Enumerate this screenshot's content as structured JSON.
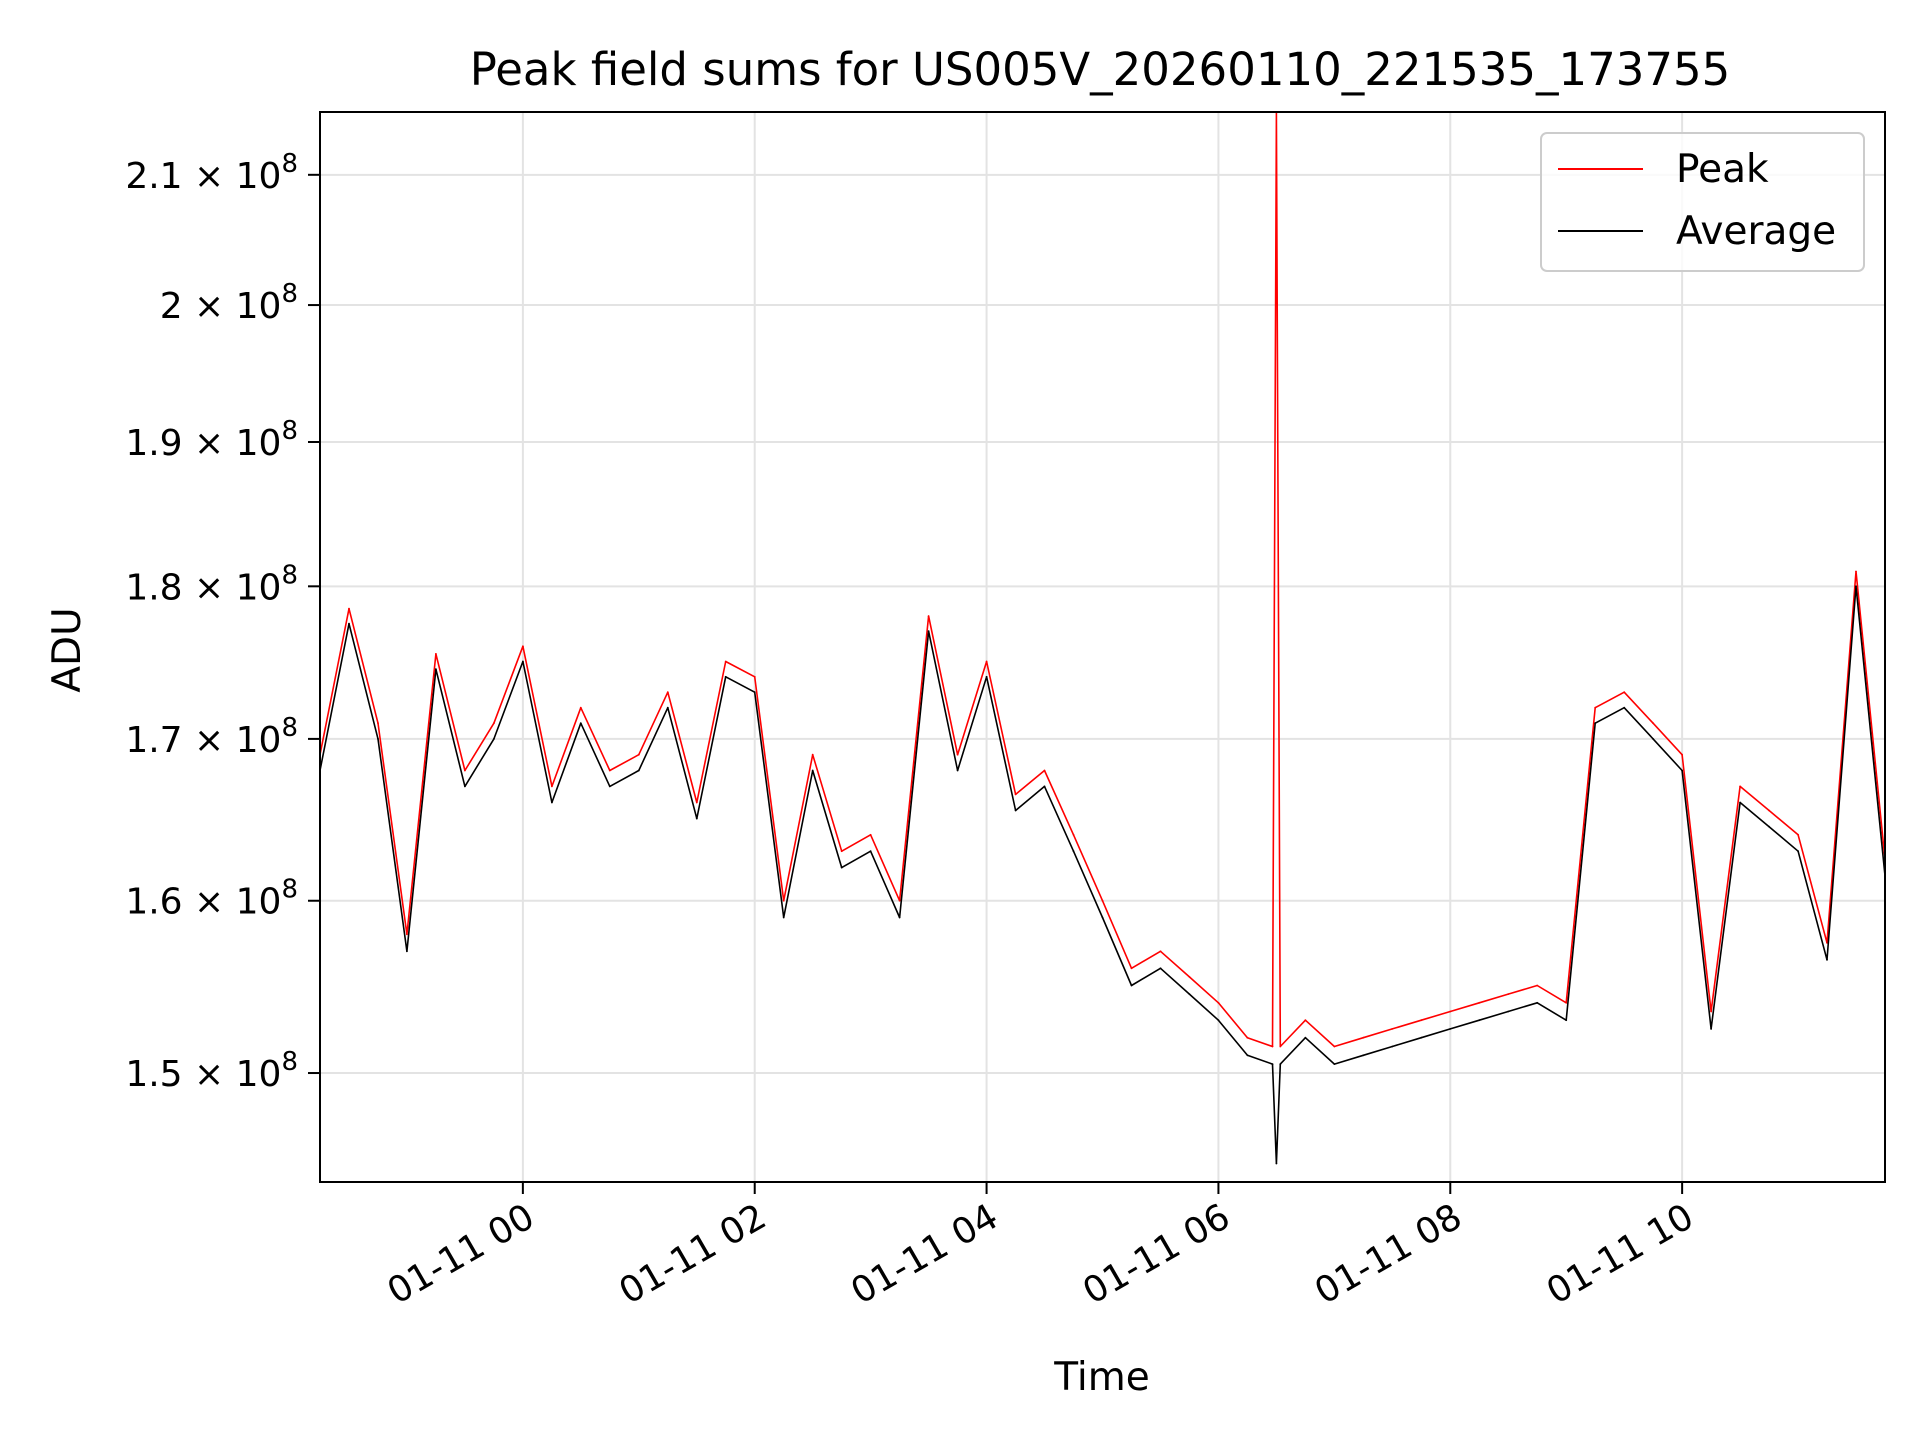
{
  "chart_data": {
    "type": "line",
    "title": "Peak field sums for US005V_20260110_221535_173755",
    "xlabel": "Time",
    "ylabel": "ADU",
    "y_scale": "log",
    "x_range": [
      "2026-01-10 22:15",
      "2026-01-11 11:45"
    ],
    "ylim": [
      144000000,
      215000000
    ],
    "grid": true,
    "legend_position": "upper right",
    "x_ticks": [
      {
        "t": "2026-01-11 00:00",
        "label": "01-11 00"
      },
      {
        "t": "2026-01-11 02:00",
        "label": "01-11 02"
      },
      {
        "t": "2026-01-11 04:00",
        "label": "01-11 04"
      },
      {
        "t": "2026-01-11 06:00",
        "label": "01-11 06"
      },
      {
        "t": "2026-01-11 08:00",
        "label": "01-11 08"
      },
      {
        "t": "2026-01-11 10:00",
        "label": "01-11 10"
      }
    ],
    "y_ticks": [
      {
        "value": 150000000,
        "mantissa": "1.5",
        "exp": "8"
      },
      {
        "value": 160000000,
        "mantissa": "1.6",
        "exp": "8"
      },
      {
        "value": 170000000,
        "mantissa": "1.7",
        "exp": "8"
      },
      {
        "value": 180000000,
        "mantissa": "1.8",
        "exp": "8"
      },
      {
        "value": 190000000,
        "mantissa": "1.9",
        "exp": "8"
      },
      {
        "value": 200000000,
        "mantissa": "2",
        "exp": "8"
      },
      {
        "value": 210000000,
        "mantissa": "2.1",
        "exp": "8"
      }
    ],
    "series": [
      {
        "name": "Peak",
        "color": "#ff0000",
        "x": [
          "2026-01-10 22:15",
          "2026-01-10 22:30",
          "2026-01-10 22:45",
          "2026-01-10 23:00",
          "2026-01-10 23:15",
          "2026-01-10 23:30",
          "2026-01-10 23:45",
          "2026-01-11 00:00",
          "2026-01-11 00:15",
          "2026-01-11 00:30",
          "2026-01-11 00:45",
          "2026-01-11 01:00",
          "2026-01-11 01:15",
          "2026-01-11 01:30",
          "2026-01-11 01:45",
          "2026-01-11 02:00",
          "2026-01-11 02:15",
          "2026-01-11 02:30",
          "2026-01-11 02:45",
          "2026-01-11 03:00",
          "2026-01-11 03:15",
          "2026-01-11 03:30",
          "2026-01-11 03:45",
          "2026-01-11 04:00",
          "2026-01-11 04:15",
          "2026-01-11 04:30",
          "2026-01-11 04:45",
          "2026-01-11 05:00",
          "2026-01-11 05:15",
          "2026-01-11 05:30",
          "2026-01-11 05:45",
          "2026-01-11 06:00",
          "2026-01-11 06:15",
          "2026-01-11 06:28",
          "2026-01-11 06:30",
          "2026-01-11 06:32",
          "2026-01-11 06:45",
          "2026-01-11 07:00",
          "2026-01-11 07:15",
          "2026-01-11 07:30",
          "2026-01-11 07:45",
          "2026-01-11 08:00",
          "2026-01-11 08:15",
          "2026-01-11 08:30",
          "2026-01-11 08:45",
          "2026-01-11 09:00",
          "2026-01-11 09:15",
          "2026-01-11 09:30",
          "2026-01-11 09:45",
          "2026-01-11 10:00",
          "2026-01-11 10:15",
          "2026-01-11 10:30",
          "2026-01-11 10:45",
          "2026-01-11 11:00",
          "2026-01-11 11:15",
          "2026-01-11 11:30",
          "2026-01-11 11:45"
        ],
        "y": [
          169000000,
          178500000,
          171000000,
          158000000,
          175500000,
          168000000,
          171000000,
          176000000,
          167000000,
          172000000,
          168000000,
          169000000,
          173000000,
          166000000,
          175000000,
          174000000,
          160000000,
          169000000,
          163000000,
          164000000,
          160000000,
          178000000,
          169000000,
          175000000,
          166500000,
          168000000,
          164000000,
          160000000,
          156000000,
          157000000,
          155500000,
          154000000,
          152000000,
          151500000,
          215000000,
          151500000,
          153000000,
          151500000,
          152000000,
          152500000,
          153000000,
          153500000,
          154000000,
          154500000,
          155000000,
          154000000,
          172000000,
          173000000,
          171000000,
          169000000,
          153500000,
          167000000,
          165500000,
          164000000,
          157500000,
          181000000,
          162500000
        ]
      },
      {
        "name": "Average",
        "color": "#000000",
        "x": [
          "2026-01-10 22:15",
          "2026-01-10 22:30",
          "2026-01-10 22:45",
          "2026-01-10 23:00",
          "2026-01-10 23:15",
          "2026-01-10 23:30",
          "2026-01-10 23:45",
          "2026-01-11 00:00",
          "2026-01-11 00:15",
          "2026-01-11 00:30",
          "2026-01-11 00:45",
          "2026-01-11 01:00",
          "2026-01-11 01:15",
          "2026-01-11 01:30",
          "2026-01-11 01:45",
          "2026-01-11 02:00",
          "2026-01-11 02:15",
          "2026-01-11 02:30",
          "2026-01-11 02:45",
          "2026-01-11 03:00",
          "2026-01-11 03:15",
          "2026-01-11 03:30",
          "2026-01-11 03:45",
          "2026-01-11 04:00",
          "2026-01-11 04:15",
          "2026-01-11 04:30",
          "2026-01-11 04:45",
          "2026-01-11 05:00",
          "2026-01-11 05:15",
          "2026-01-11 05:30",
          "2026-01-11 05:45",
          "2026-01-11 06:00",
          "2026-01-11 06:15",
          "2026-01-11 06:28",
          "2026-01-11 06:30",
          "2026-01-11 06:32",
          "2026-01-11 06:45",
          "2026-01-11 07:00",
          "2026-01-11 07:15",
          "2026-01-11 07:30",
          "2026-01-11 07:45",
          "2026-01-11 08:00",
          "2026-01-11 08:15",
          "2026-01-11 08:30",
          "2026-01-11 08:45",
          "2026-01-11 09:00",
          "2026-01-11 09:15",
          "2026-01-11 09:30",
          "2026-01-11 09:45",
          "2026-01-11 10:00",
          "2026-01-11 10:15",
          "2026-01-11 10:30",
          "2026-01-11 10:45",
          "2026-01-11 11:00",
          "2026-01-11 11:15",
          "2026-01-11 11:30",
          "2026-01-11 11:45"
        ],
        "y": [
          168000000,
          177500000,
          170000000,
          157000000,
          174500000,
          167000000,
          170000000,
          175000000,
          166000000,
          171000000,
          167000000,
          168000000,
          172000000,
          165000000,
          174000000,
          173000000,
          159000000,
          168000000,
          162000000,
          163000000,
          159000000,
          177000000,
          168000000,
          174000000,
          165500000,
          167000000,
          163000000,
          159000000,
          155000000,
          156000000,
          154500000,
          153000000,
          151000000,
          150500000,
          145000000,
          150500000,
          152000000,
          150500000,
          151000000,
          151500000,
          152000000,
          152500000,
          153000000,
          153500000,
          154000000,
          153000000,
          171000000,
          172000000,
          170000000,
          168000000,
          152500000,
          166000000,
          164500000,
          163000000,
          156500000,
          180000000,
          161500000
        ]
      }
    ]
  }
}
